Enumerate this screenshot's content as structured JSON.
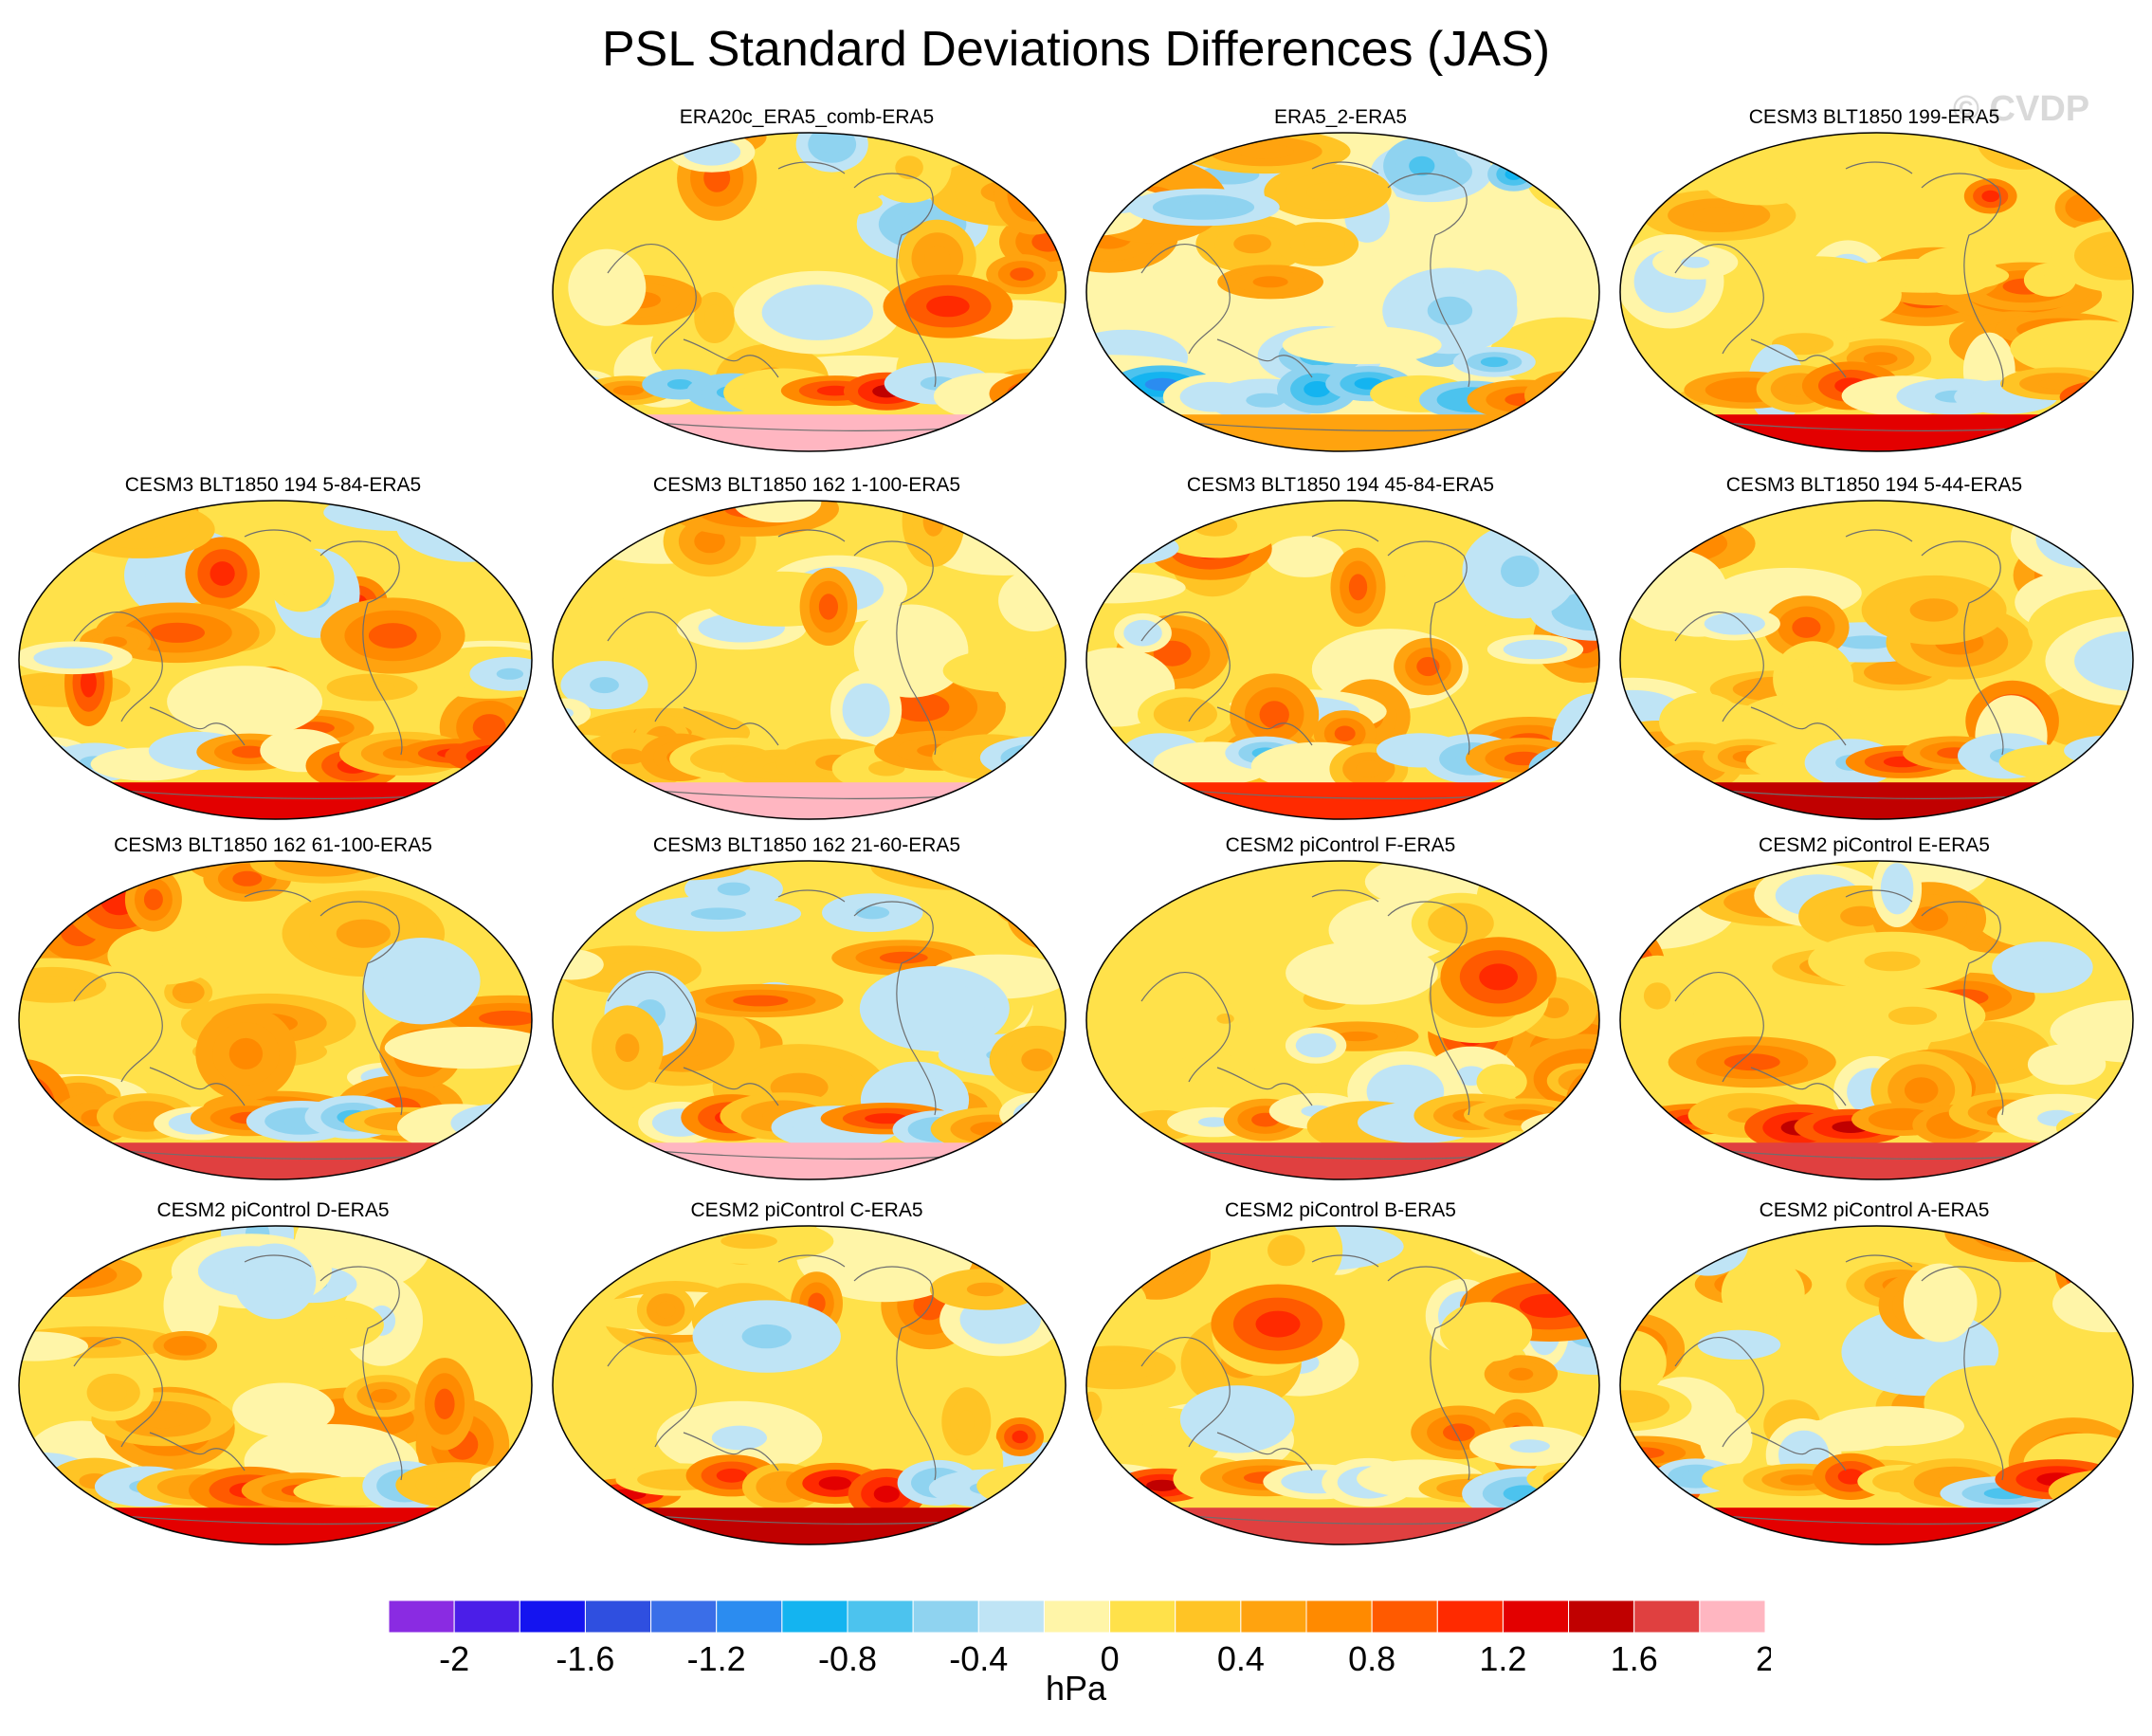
{
  "title": "PSL Standard Deviations Differences (JAS)",
  "watermark": "© CVDP",
  "panels": [
    {
      "title": "",
      "present": false
    },
    {
      "title": "ERA20c_ERA5_comb-ERA5",
      "present": true,
      "seed": 3,
      "bias": 0.25,
      "south_pole": 1.9
    },
    {
      "title": "ERA5_2-ERA5",
      "present": true,
      "seed": 7,
      "bias": -0.05,
      "south_pole": 0.5
    },
    {
      "title": "CESM3 BLT1850 199-ERA5",
      "present": true,
      "seed": 11,
      "bias": 0.35,
      "south_pole": 1.3
    },
    {
      "title": "CESM3 BLT1850 194 5-84-ERA5",
      "present": true,
      "seed": 13,
      "bias": 0.3,
      "south_pole": 1.3
    },
    {
      "title": "CESM3 BLT1850 162 1-100-ERA5",
      "present": true,
      "seed": 17,
      "bias": 0.35,
      "south_pole": 1.8
    },
    {
      "title": "CESM3 BLT1850 194 45-84-ERA5",
      "present": true,
      "seed": 19,
      "bias": 0.25,
      "south_pole": 1.0
    },
    {
      "title": "CESM3 BLT1850 194 5-44-ERA5",
      "present": true,
      "seed": 23,
      "bias": 0.35,
      "south_pole": 1.5
    },
    {
      "title": "CESM3 BLT1850 162 61-100-ERA5",
      "present": true,
      "seed": 29,
      "bias": 0.3,
      "south_pole": 1.6
    },
    {
      "title": "CESM3 BLT1850 162 21-60-ERA5",
      "present": true,
      "seed": 31,
      "bias": 0.3,
      "south_pole": 1.9
    },
    {
      "title": "CESM2 piControl F-ERA5",
      "present": true,
      "seed": 37,
      "bias": 0.4,
      "south_pole": 1.7
    },
    {
      "title": "CESM2 piControl E-ERA5",
      "present": true,
      "seed": 41,
      "bias": 0.4,
      "south_pole": 1.7
    },
    {
      "title": "CESM2 piControl D-ERA5",
      "present": true,
      "seed": 43,
      "bias": 0.3,
      "south_pole": 1.3
    },
    {
      "title": "CESM2 piControl C-ERA5",
      "present": true,
      "seed": 47,
      "bias": 0.3,
      "south_pole": 1.4
    },
    {
      "title": "CESM2 piControl B-ERA5",
      "present": true,
      "seed": 53,
      "bias": 0.35,
      "south_pole": 1.6
    },
    {
      "title": "CESM2 piControl A-ERA5",
      "present": true,
      "seed": 59,
      "bias": 0.3,
      "south_pole": 1.2
    }
  ],
  "colorbar": {
    "colors": [
      "#8a2be2",
      "#4b1ee8",
      "#1414f0",
      "#2f4fe0",
      "#3a6ee8",
      "#2b8cf0",
      "#14b4f0",
      "#4cc3ee",
      "#8fd3f0",
      "#bfe4f5",
      "#fff5a8",
      "#ffe14a",
      "#ffc425",
      "#ffa30f",
      "#ff8a00",
      "#ff5a00",
      "#ff2a00",
      "#e30000",
      "#c00000",
      "#e04040",
      "#ffb6c1"
    ],
    "tick_labels": [
      "-2",
      "-1.6",
      "-1.2",
      "-0.8",
      "-0.4",
      "0",
      "0.4",
      "0.8",
      "1.2",
      "1.6",
      "2"
    ],
    "tick_values": [
      -2,
      -1.6,
      -1.2,
      -0.8,
      -0.4,
      0,
      0.4,
      0.8,
      1.2,
      1.6,
      2
    ],
    "levels": [
      -2.2,
      -2,
      -1.8,
      -1.6,
      -1.4,
      -1.2,
      -1,
      -0.8,
      -0.6,
      -0.4,
      -0.2,
      0,
      0.2,
      0.4,
      0.6,
      0.8,
      1,
      1.2,
      1.4,
      1.6,
      1.8,
      2,
      2.2
    ],
    "units": "hPa"
  }
}
